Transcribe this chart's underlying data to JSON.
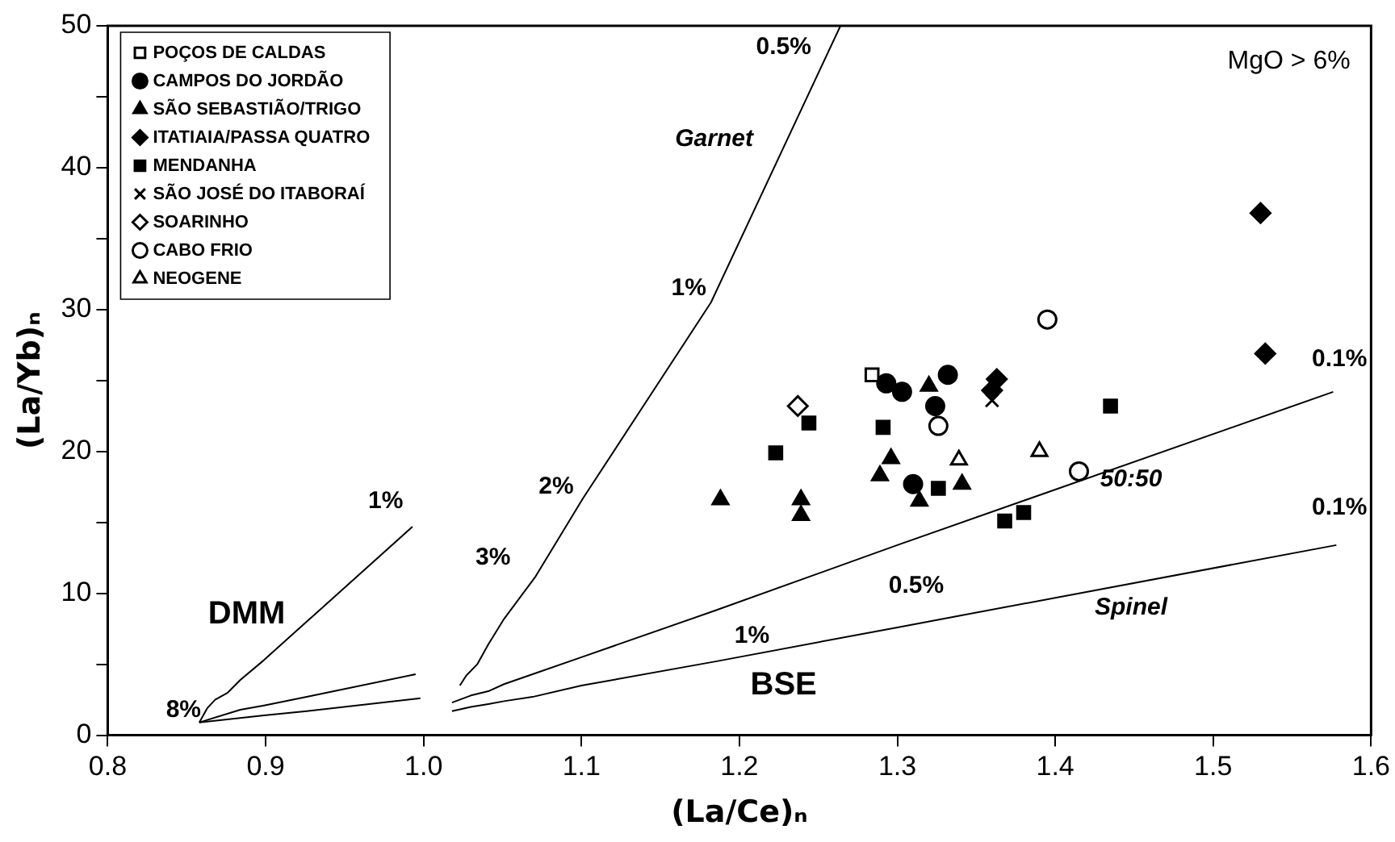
{
  "chart_data": {
    "type": "scatter",
    "xlabel": "(La/Ce)ₙ",
    "ylabel": "(La/Yb)ₙ",
    "xlim": [
      0.8,
      1.6
    ],
    "ylim": [
      0,
      50
    ],
    "xticks": [
      0.8,
      0.9,
      {
        "value": 1,
        "label": "1.0"
      },
      1.1,
      1.2,
      1.3,
      1.4,
      1.5,
      1.6
    ],
    "yticks": [
      0,
      {
        "value": 5,
        "label": null
      },
      10,
      {
        "value": 15,
        "label": null
      },
      20,
      {
        "value": 25,
        "label": null
      },
      30,
      {
        "value": 35,
        "label": null
      },
      40,
      {
        "value": 45,
        "label": null
      },
      50
    ],
    "grid": false,
    "legend": "top left",
    "series": [
      {
        "type": "line",
        "marker": "none",
        "color": "#000000",
        "x": [
          0.858,
          0.863,
          0.868,
          0.876,
          0.884,
          0.899,
          0.926,
          0.993
        ],
        "values": [
          0.9,
          1.9,
          2.5,
          3.0,
          3.9,
          5.3,
          8.0,
          14.7
        ]
      },
      {
        "type": "line",
        "marker": "none",
        "color": "#000000",
        "x": [
          0.858,
          0.884,
          0.899,
          0.926,
          0.995
        ],
        "values": [
          0.9,
          1.8,
          2.1,
          2.7,
          4.3
        ]
      },
      {
        "type": "line",
        "marker": "none",
        "color": "#000000",
        "x": [
          0.858,
          0.899,
          0.926,
          0.998
        ],
        "values": [
          0.9,
          1.4,
          1.7,
          2.6
        ]
      },
      {
        "type": "line",
        "marker": "none",
        "color": "#000000",
        "x": [
          1.023,
          1.027,
          1.034,
          1.041,
          1.051,
          1.071,
          1.101,
          1.182,
          1.264
        ],
        "values": [
          3.5,
          4.2,
          5.0,
          6.4,
          8.2,
          11.2,
          16.7,
          30.5,
          50
        ]
      },
      {
        "type": "line",
        "marker": "none",
        "color": "#000000",
        "x": [
          1.018,
          1.03,
          1.041,
          1.051,
          1.069,
          1.1,
          1.185,
          1.3,
          1.576
        ],
        "values": [
          2.3,
          2.8,
          3.1,
          3.6,
          4.3,
          5.5,
          8.8,
          13.4,
          24.2
        ]
      },
      {
        "type": "line",
        "marker": "none",
        "color": "#000000",
        "x": [
          1.018,
          1.03,
          1.041,
          1.051,
          1.069,
          1.1,
          1.185,
          1.3,
          1.578
        ],
        "values": [
          1.7,
          2.0,
          2.2,
          2.4,
          2.7,
          3.5,
          5.2,
          7.6,
          13.4
        ]
      },
      {
        "name": "POÇOS DE CALDAS",
        "marker": "square",
        "color": "#ffffff",
        "x": [
          1.284
        ],
        "values": [
          25.4
        ]
      },
      {
        "name": "CAMPOS DO JORDÃO",
        "marker": "circle",
        "color": "#000000",
        "x": [
          1.293,
          1.303,
          1.332,
          1.324,
          1.31
        ],
        "values": [
          24.8,
          24.2,
          25.4,
          23.2,
          17.7
        ]
      },
      {
        "name": "SÃO SEBASTIÃO/TRIGO",
        "marker": "triangle",
        "color": "#000000",
        "x": [
          1.32,
          1.296,
          1.289,
          1.314,
          1.341,
          1.239,
          1.239,
          1.188
        ],
        "values": [
          24.6,
          19.5,
          18.3,
          16.5,
          17.7,
          16.6,
          15.5,
          16.6
        ]
      },
      {
        "name": "ITATIAIA/PASSA QUATRO",
        "marker": "diamond",
        "color": "#000000",
        "x": [
          1.363,
          1.36,
          1.53,
          1.533
        ],
        "values": [
          25.1,
          24.3,
          36.8,
          26.9
        ]
      },
      {
        "name": "MENDANHA",
        "marker": "square",
        "color": "#000000",
        "x": [
          1.244,
          1.223,
          1.291,
          1.326,
          1.435,
          1.38,
          1.368
        ],
        "values": [
          22.0,
          19.9,
          21.7,
          17.4,
          23.2,
          15.7,
          15.1
        ]
      },
      {
        "name": "SÃO JOSÉ DO ITABORAÍ",
        "marker": "cross",
        "color": "#000000",
        "x": [
          1.36
        ],
        "values": [
          23.6
        ]
      },
      {
        "name": "SOARINHO",
        "marker": "diamond",
        "color": "#ffffff",
        "x": [
          1.237
        ],
        "values": [
          23.2
        ]
      },
      {
        "name": "CABO FRIO",
        "marker": "circle",
        "color": "#ffffff",
        "x": [
          1.395,
          1.326,
          1.415
        ],
        "values": [
          29.3,
          21.8,
          18.6
        ]
      },
      {
        "name": "NEOGENE",
        "marker": "triangle",
        "color": "#ffffff",
        "x": [
          1.339,
          1.39
        ],
        "values": [
          19.4,
          20.0
        ]
      }
    ],
    "annotations": [
      "0.5%",
      "Garnet",
      "1%",
      "2%",
      "3%",
      "1%",
      "8%",
      "DMM",
      "BSE",
      "0.1%",
      "50:50",
      "0.5%",
      "1%",
      "0.1%",
      "Spinel",
      "MgO > 6%"
    ]
  }
}
